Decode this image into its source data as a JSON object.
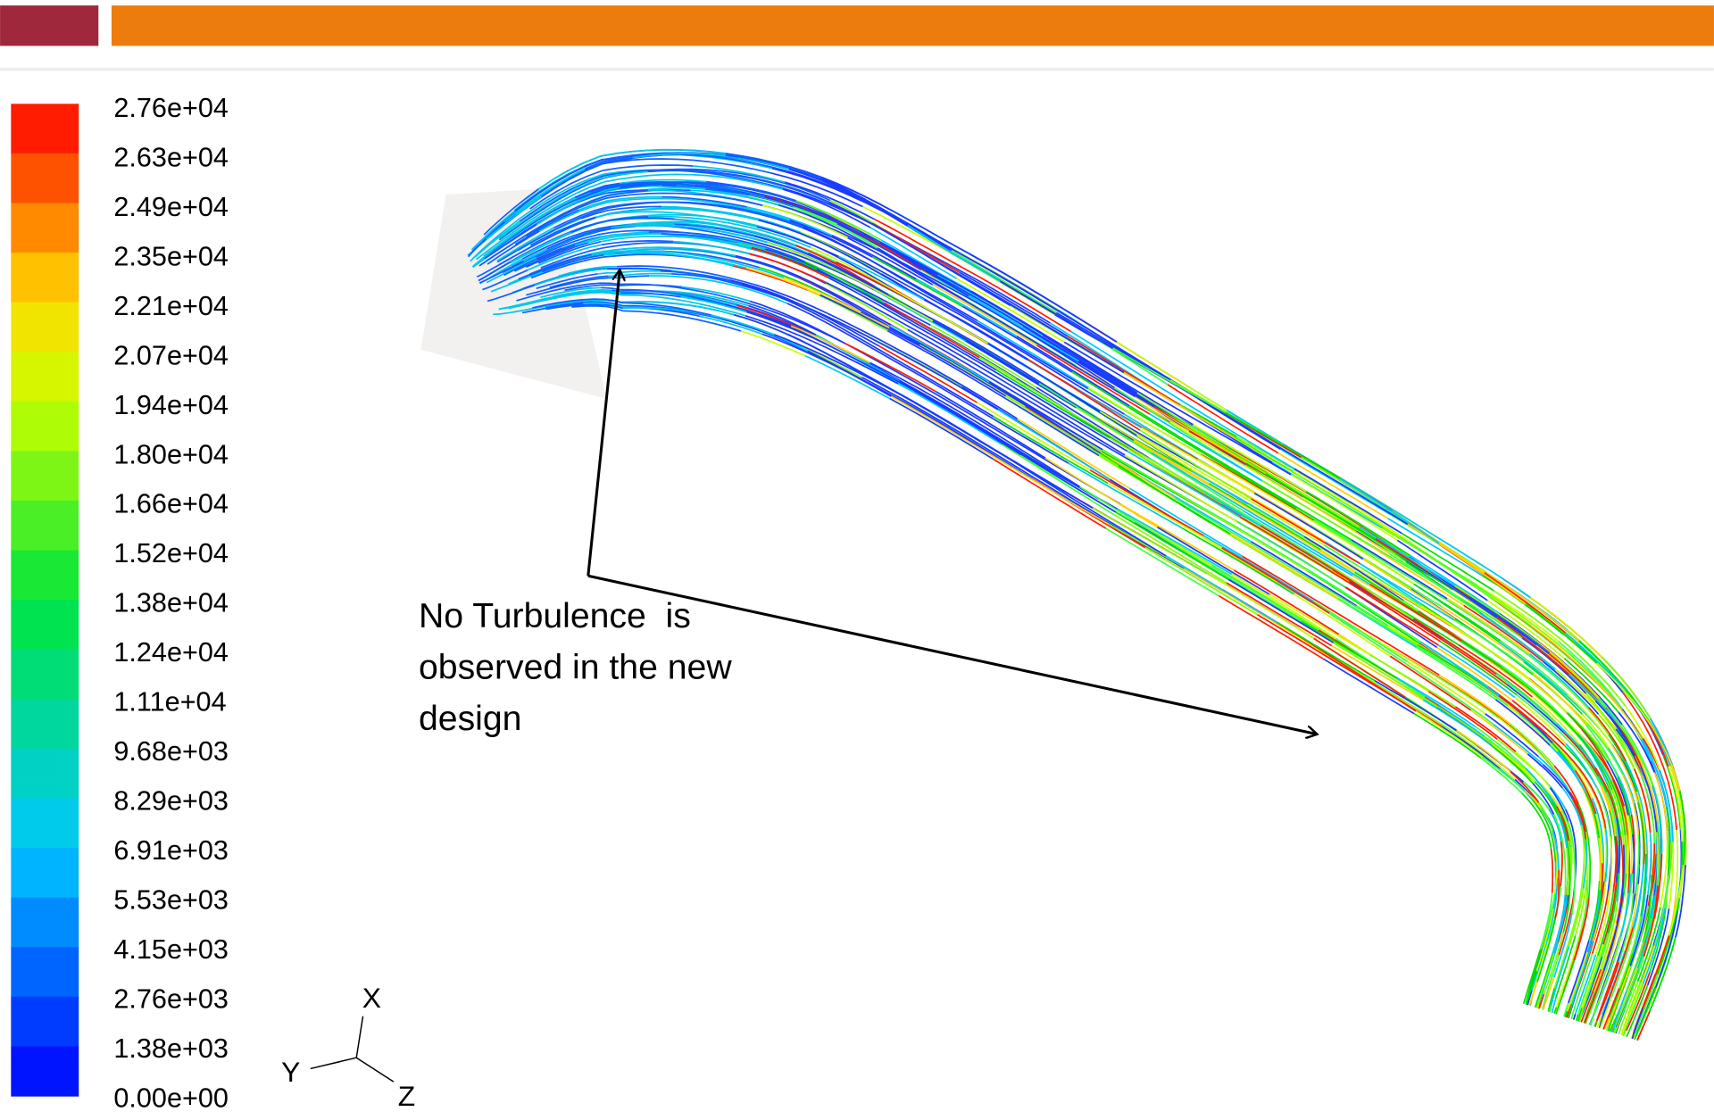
{
  "legend": {
    "labels": [
      "2.76e+04",
      "2.63e+04",
      "2.49e+04",
      "2.35e+04",
      "2.21e+04",
      "2.07e+04",
      "1.94e+04",
      "1.80e+04",
      "1.66e+04",
      "1.52e+04",
      "1.38e+04",
      "1.24e+04",
      "1.11e+04",
      "9.68e+03",
      "8.29e+03",
      "6.91e+03",
      "5.53e+03",
      "4.15e+03",
      "2.76e+03",
      "1.38e+03",
      "0.00e+00"
    ]
  },
  "annotation": {
    "lines": [
      "No Turbulence  is",
      "observed in the new",
      "design"
    ]
  },
  "triad": {
    "x": "X",
    "y": "Y",
    "z": "Z"
  }
}
